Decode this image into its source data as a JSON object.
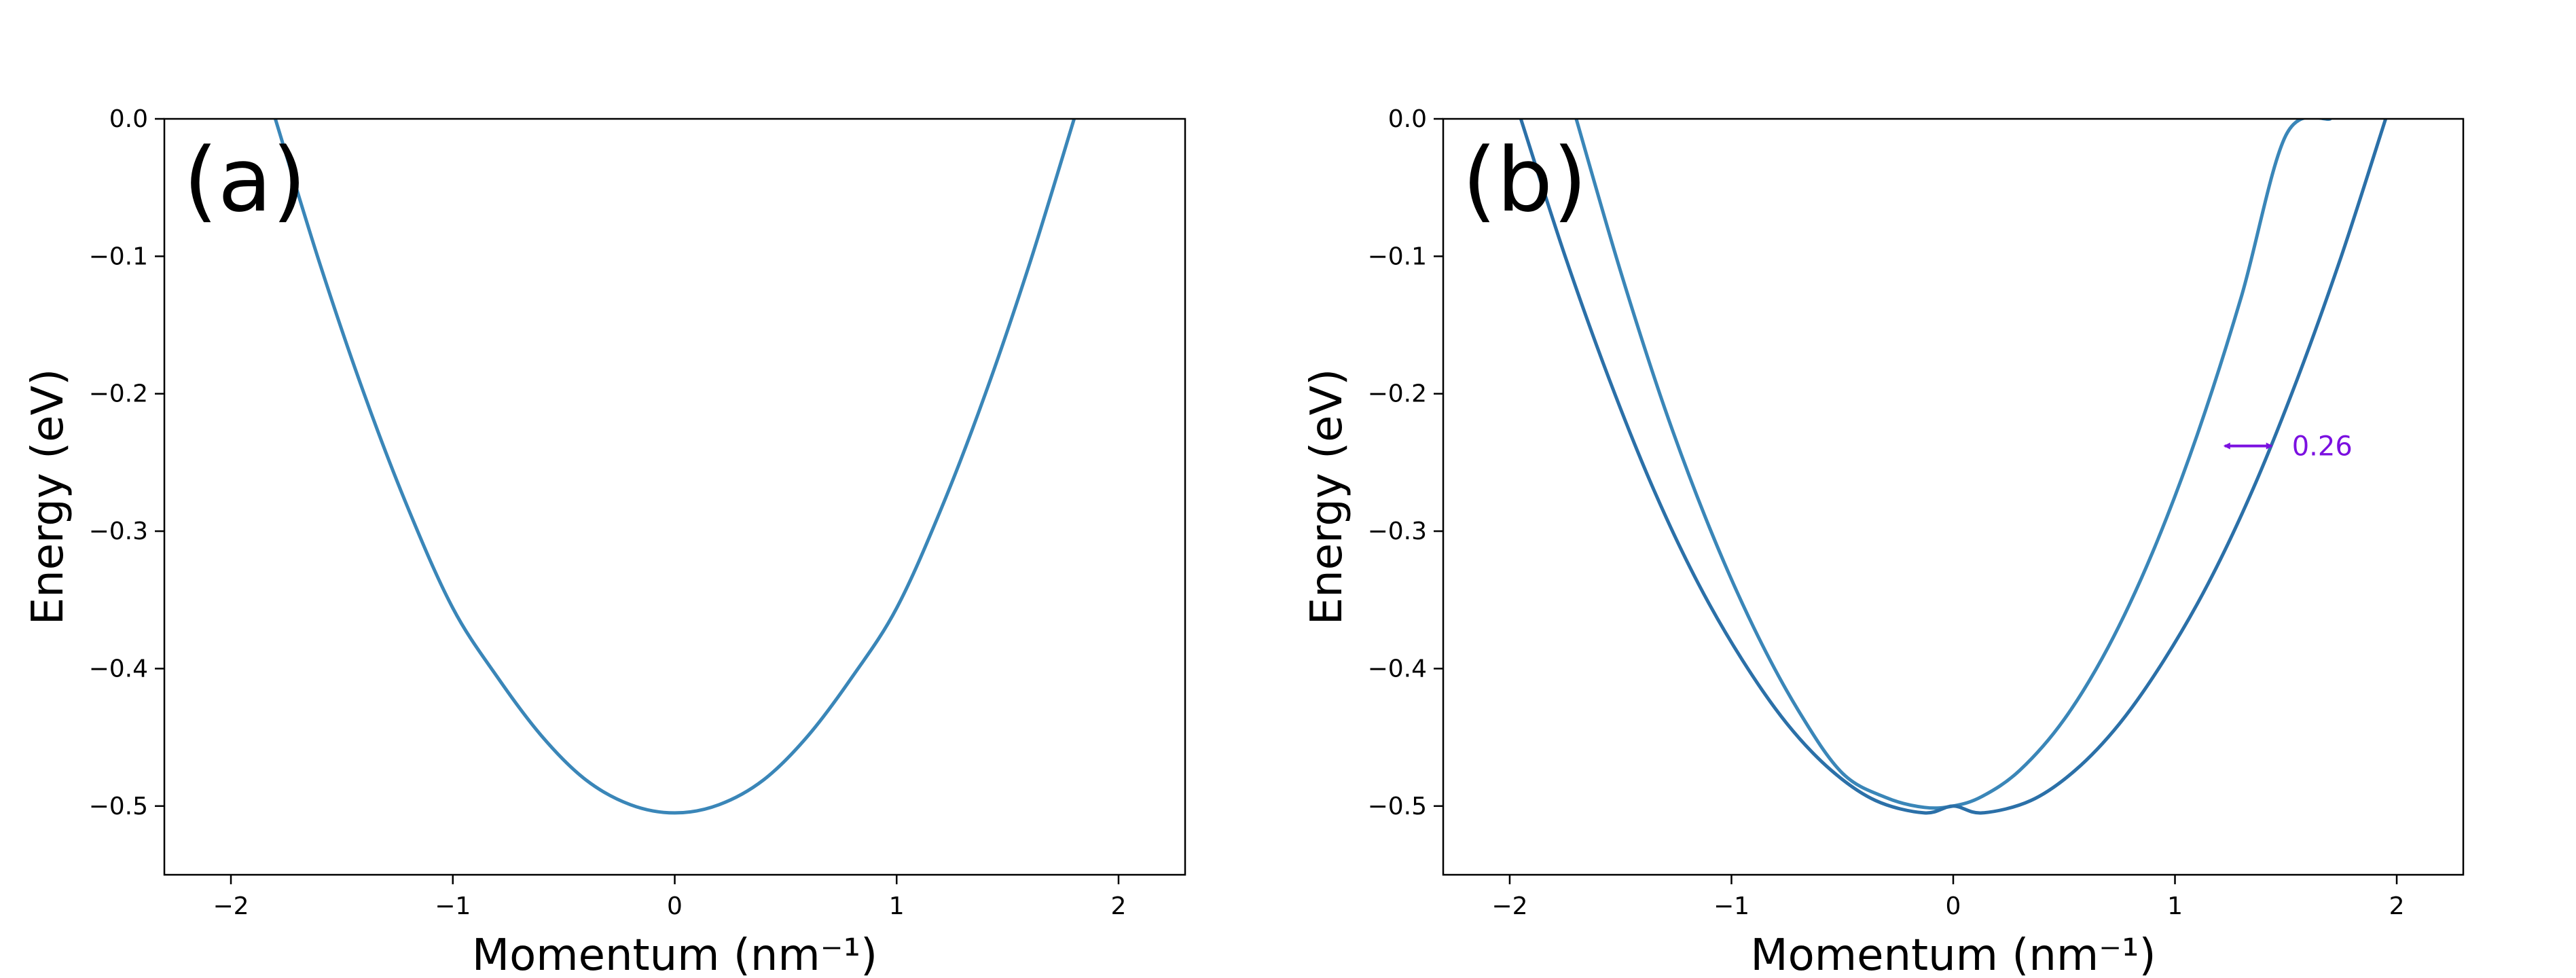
{
  "chart_data": [
    {
      "type": "line",
      "panel_label": "(a)",
      "xlabel": "Momentum (nm⁻¹)",
      "ylabel": "Energy (eV)",
      "xlim": [
        -2.3,
        2.3
      ],
      "ylim": [
        -0.55,
        0.0
      ],
      "xticks": [
        -2,
        -1,
        0,
        1,
        2
      ],
      "xtick_labels": [
        "−2",
        "−1",
        "0",
        "1",
        "2"
      ],
      "yticks": [
        0.0,
        -0.1,
        -0.2,
        -0.3,
        -0.4,
        -0.5
      ],
      "ytick_labels": [
        "0.0",
        "−0.1",
        "−0.2",
        "−0.3",
        "−0.4",
        "−0.5"
      ],
      "grid": false,
      "series": [
        {
          "color": "#3a86b8",
          "x": [
            -1.8,
            -1.6,
            -1.4,
            -1.2,
            -1.0,
            -0.8,
            -0.6,
            -0.4,
            -0.2,
            0.0,
            0.2,
            0.4,
            0.6,
            0.8,
            1.0,
            1.2,
            1.4,
            1.6,
            1.8
          ],
          "y": [
            0.0,
            -0.105,
            -0.2,
            -0.284,
            -0.356,
            -0.406,
            -0.449,
            -0.481,
            -0.499,
            -0.505,
            -0.499,
            -0.481,
            -0.449,
            -0.406,
            -0.356,
            -0.284,
            -0.2,
            -0.105,
            0.0
          ]
        }
      ]
    },
    {
      "type": "line",
      "panel_label": "(b)",
      "xlabel": "Momentum (nm⁻¹)",
      "ylabel": "Energy (eV)",
      "xlim": [
        -2.3,
        2.3
      ],
      "ylim": [
        -0.55,
        0.0
      ],
      "xticks": [
        -2,
        -1,
        0,
        1,
        2
      ],
      "xtick_labels": [
        "−2",
        "−1",
        "0",
        "1",
        "2"
      ],
      "yticks": [
        0.0,
        -0.1,
        -0.2,
        -0.3,
        -0.4,
        -0.5
      ],
      "ytick_labels": [
        "0.0",
        "−0.1",
        "−0.2",
        "−0.3",
        "−0.4",
        "−0.5"
      ],
      "grid": false,
      "series": [
        {
          "color": "#3a86b8",
          "x": [
            -1.7,
            -1.5,
            -1.3,
            -1.1,
            -0.9,
            -0.7,
            -0.5,
            -0.3,
            -0.13,
            0.0,
            0.13,
            0.3,
            0.5,
            0.7,
            0.9,
            1.1,
            1.3,
            1.5,
            1.7
          ],
          "y": [
            0.0,
            -0.111,
            -0.211,
            -0.297,
            -0.37,
            -0.43,
            -0.476,
            -0.494,
            -0.501,
            -0.5,
            -0.493,
            -0.474,
            -0.437,
            -0.384,
            -0.315,
            -0.23,
            -0.129,
            -0.012,
            0.0
          ]
        },
        {
          "color": "#2b70a8",
          "x": [
            -1.95,
            -1.75,
            -1.55,
            -1.35,
            -1.15,
            -0.95,
            -0.75,
            -0.55,
            -0.35,
            -0.13,
            0.0,
            0.13,
            0.35,
            0.55,
            0.75,
            0.95,
            1.15,
            1.35,
            1.55,
            1.75,
            1.95
          ],
          "y": [
            0.0,
            -0.1,
            -0.19,
            -0.27,
            -0.338,
            -0.394,
            -0.44,
            -0.474,
            -0.496,
            -0.505,
            -0.5,
            -0.505,
            -0.496,
            -0.474,
            -0.44,
            -0.394,
            -0.338,
            -0.27,
            -0.19,
            -0.1,
            0.0
          ]
        }
      ],
      "annotation": {
        "text": "0.26",
        "color": "#7b10e0",
        "x_start": 1.2,
        "x_end": 1.46,
        "y": -0.238
      }
    }
  ]
}
